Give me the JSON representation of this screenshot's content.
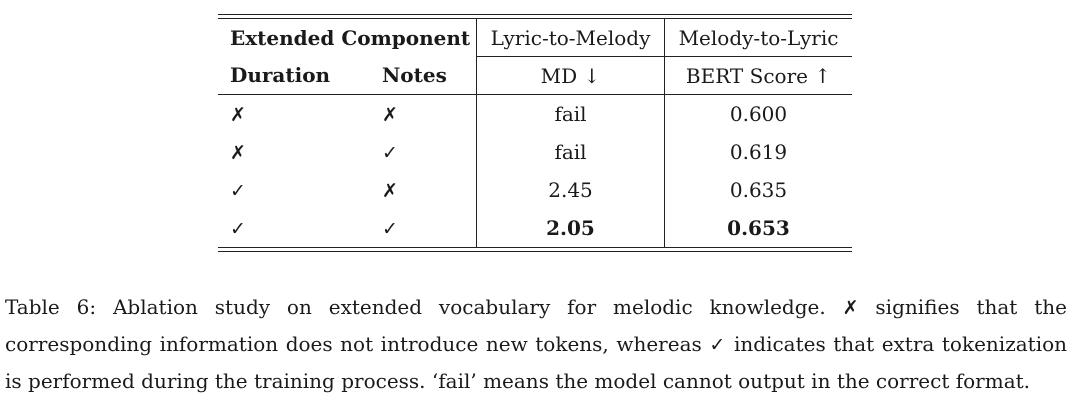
{
  "table": {
    "header": {
      "extended_component": "Extended Component",
      "lyric_to_melody": "Lyric-to-Melody",
      "melody_to_lyric": "Melody-to-Lyric",
      "duration": "Duration",
      "notes": "Notes",
      "md_metric": "MD ↓",
      "bert_metric": "BERT Score ↑"
    },
    "rows": [
      {
        "duration": "✗",
        "notes": "✗",
        "md": "fail",
        "bert": "0.600",
        "bold": false
      },
      {
        "duration": "✗",
        "notes": "✓",
        "md": "fail",
        "bert": "0.619",
        "bold": false
      },
      {
        "duration": "✓",
        "notes": "✗",
        "md": "2.45",
        "bert": "0.635",
        "bold": false
      },
      {
        "duration": "✓",
        "notes": "✓",
        "md": "2.05",
        "bert": "0.653",
        "bold": true
      }
    ]
  },
  "caption": {
    "label": "Table 6:",
    "text_1": " Ablation study on extended vocabulary for melodic knowledge. ",
    "cross": "✗",
    "text_2": " signifies that the corresponding information does not introduce new tokens, whereas ",
    "check": "✓",
    "text_3": " indicates that extra tokenization is performed during the training process. ‘fail’ means the model cannot output in the correct format."
  }
}
